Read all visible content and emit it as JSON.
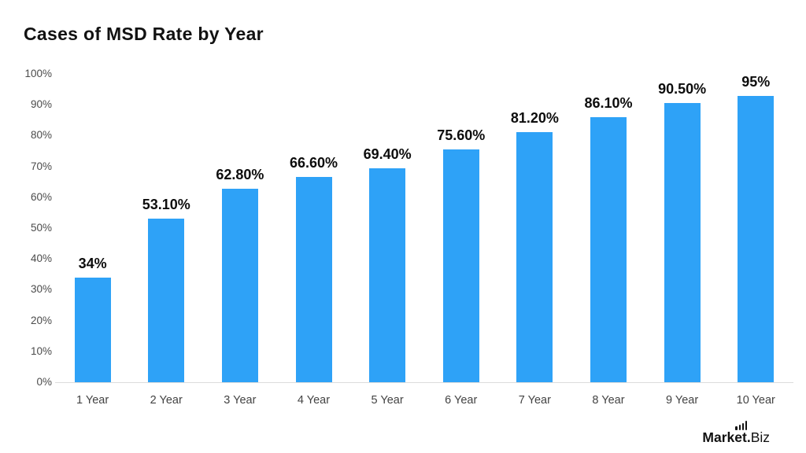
{
  "chart_data": {
    "type": "bar",
    "title": "Cases of MSD Rate by Year",
    "categories": [
      "1 Year",
      "2 Year",
      "3 Year",
      "4 Year",
      "5 Year",
      "6 Year",
      "7 Year",
      "8 Year",
      "9 Year",
      "10 Year"
    ],
    "values": [
      34,
      53.1,
      62.8,
      66.6,
      69.4,
      75.6,
      81.2,
      86.1,
      90.5,
      95
    ],
    "value_labels": [
      "34%",
      "53.10%",
      "62.80%",
      "66.60%",
      "69.40%",
      "75.60%",
      "81.20%",
      "86.10%",
      "90.50%",
      "95%"
    ],
    "y_ticks": [
      "100%",
      "90%",
      "80%",
      "70%",
      "60%",
      "50%",
      "40%",
      "30%",
      "20%",
      "10%",
      "0%"
    ],
    "xlabel": "",
    "ylabel": "",
    "ylim": [
      0,
      100
    ],
    "grid": false,
    "legend": "none",
    "bar_color": "#2EA2F7",
    "value_label_color": "#0d0d0d",
    "axis_tick_color": "#4b4b4b",
    "baseline_color": "#dcdcdc"
  },
  "footer": {
    "logo_bold": "Market.",
    "logo_light": "Biz"
  }
}
